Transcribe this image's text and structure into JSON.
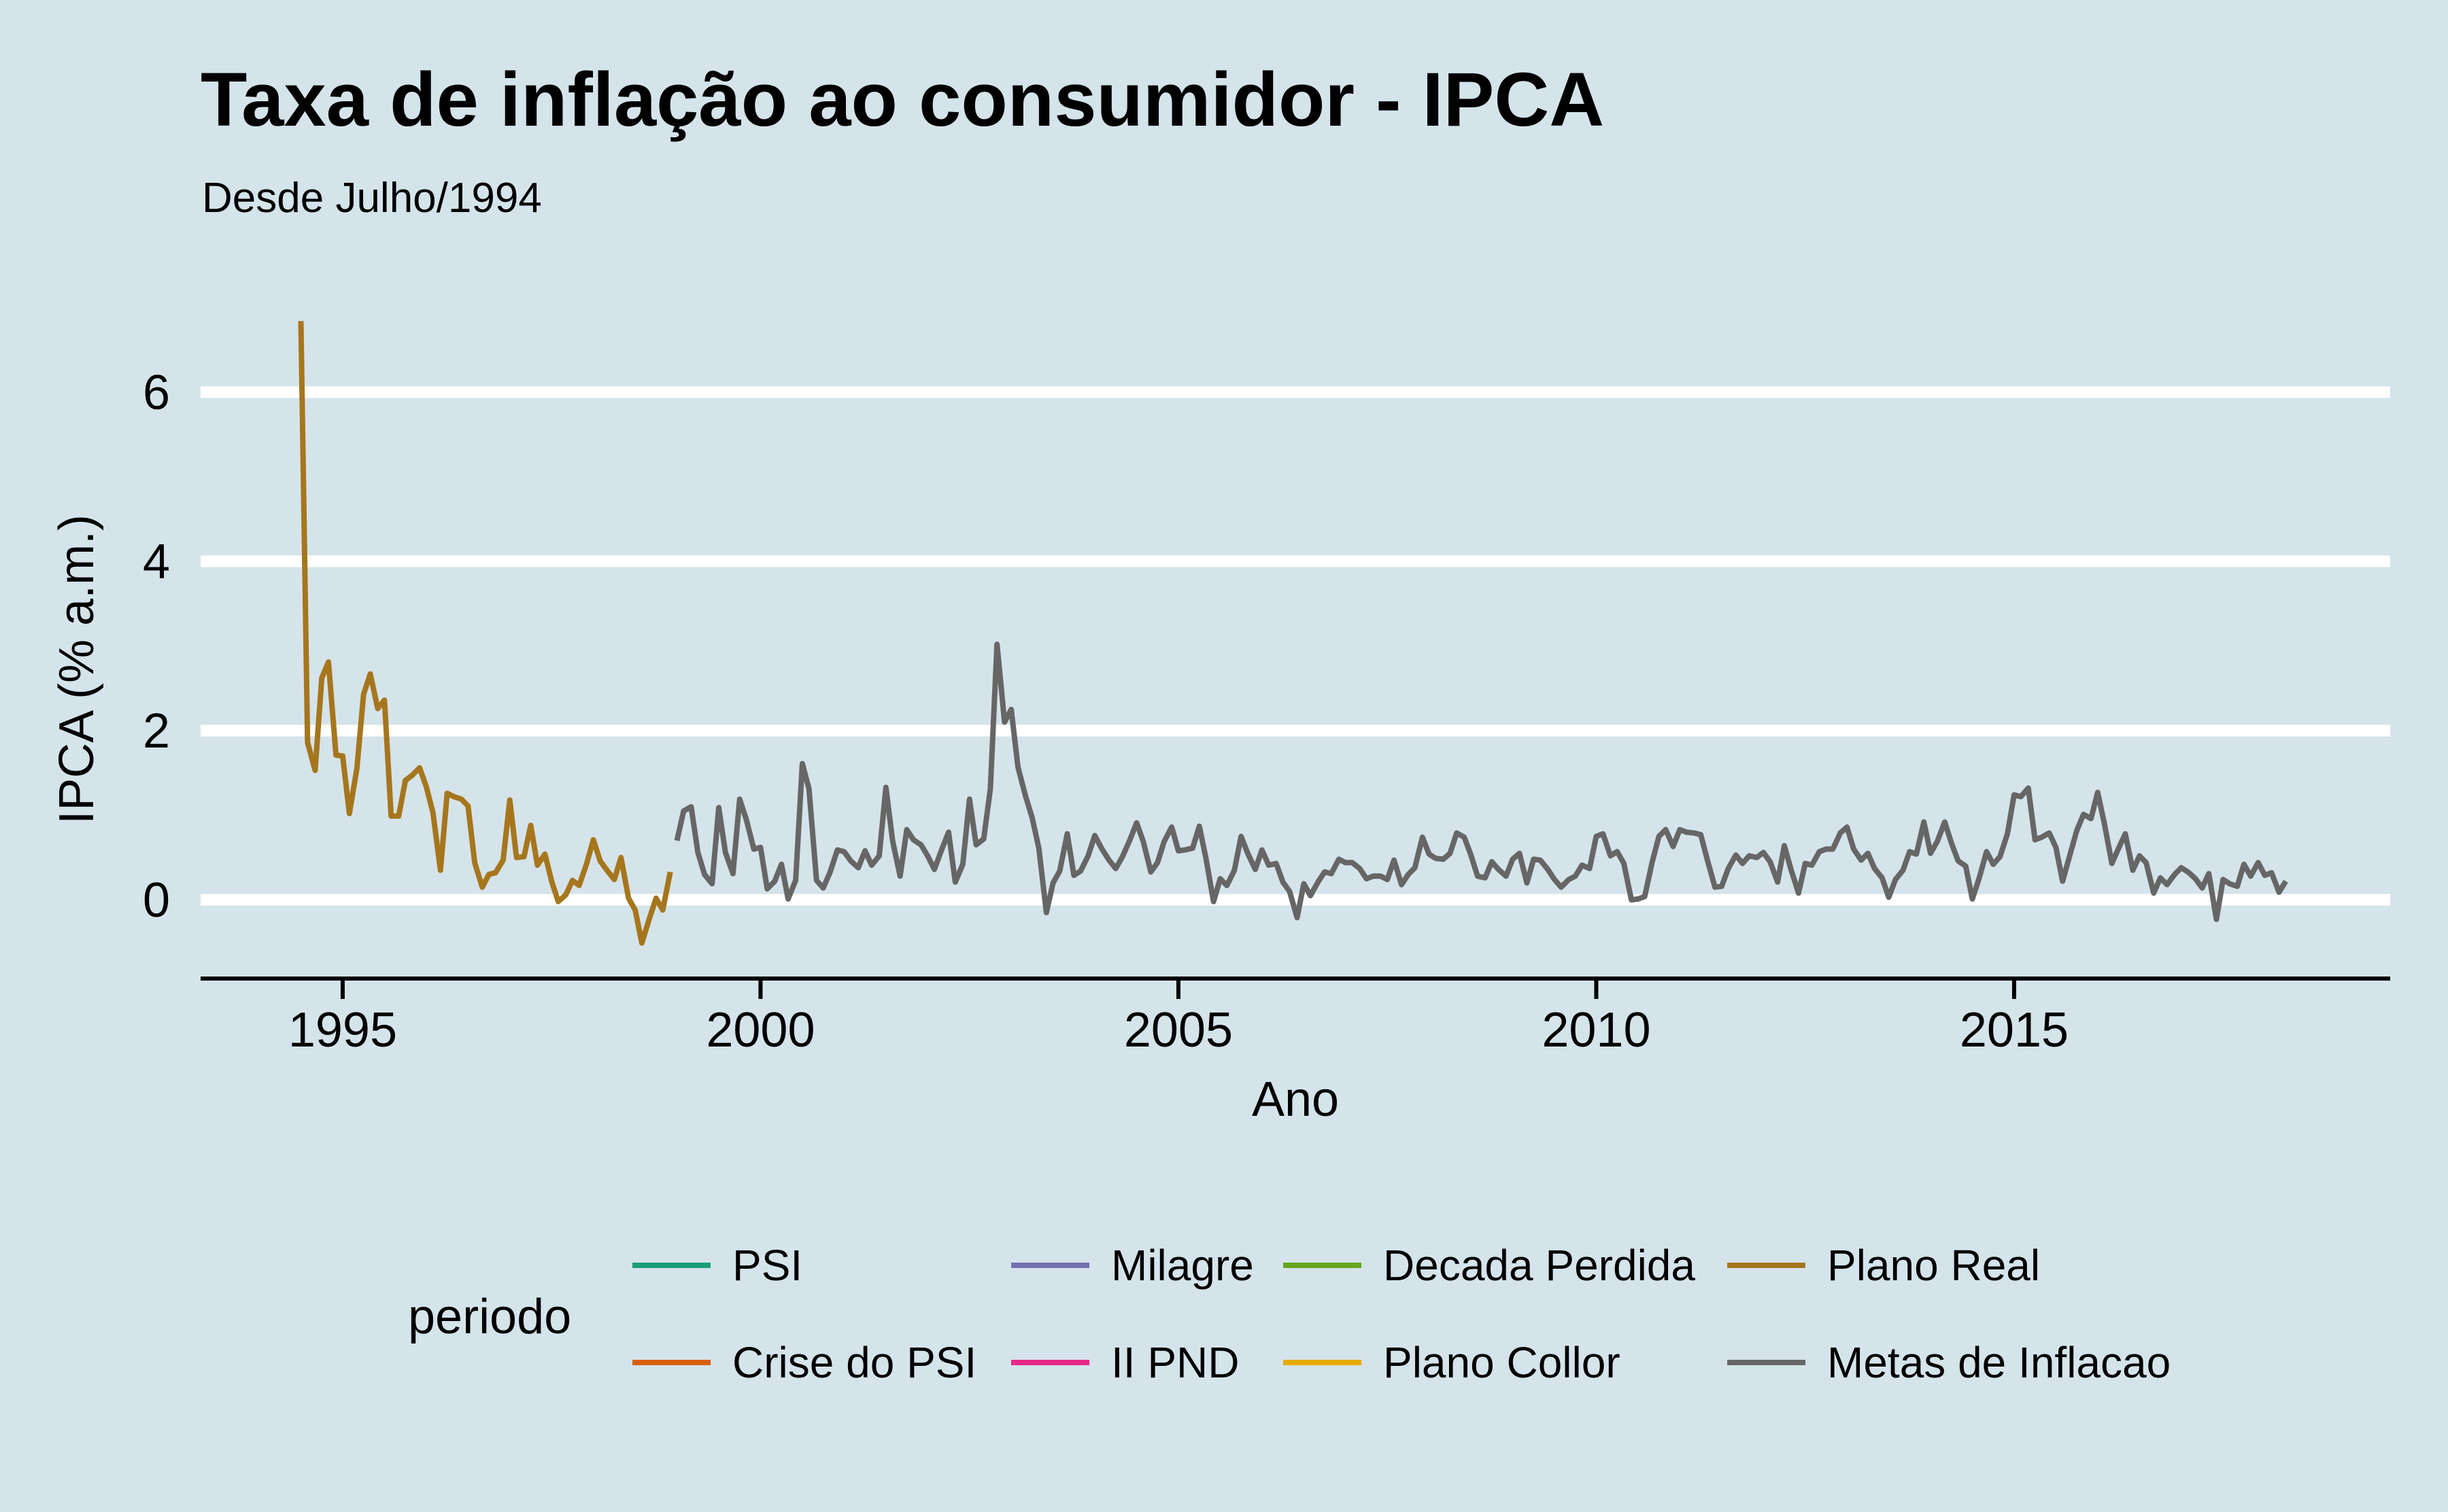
{
  "chart_data": {
    "type": "line",
    "title": "Taxa de inflação ao consumidor - IPCA",
    "subtitle": "Desde Julho/1994",
    "xlabel": "Ano",
    "ylabel": "IPCA (% a.m.)",
    "xlim": [
      1993.3,
      2019.5
    ],
    "ylim": [
      -0.93,
      7.1
    ],
    "x_ticks": [
      1995,
      2000,
      2005,
      2010,
      2015
    ],
    "x_tick_labels": [
      "1995",
      "2000",
      "2005",
      "2010",
      "2015"
    ],
    "y_ticks": [
      0,
      2,
      4,
      6
    ],
    "y_tick_labels": [
      "0",
      "2",
      "4",
      "6"
    ],
    "grid": "horizontal major lines only",
    "legend_title": "periodo",
    "legend_position": "bottom",
    "legend": [
      {
        "name": "PSI",
        "color": "#1b9e77"
      },
      {
        "name": "Milagre",
        "color": "#7570b3"
      },
      {
        "name": "Decada Perdida",
        "color": "#66a61e"
      },
      {
        "name": "Plano Real",
        "color": "#a6761d"
      },
      {
        "name": "Crise do PSI",
        "color": "#d95f02"
      },
      {
        "name": "II PND",
        "color": "#e7298a"
      },
      {
        "name": "Plano Collor",
        "color": "#e6ab02"
      },
      {
        "name": "Metas de Inflacao",
        "color": "#666666"
      }
    ],
    "series": [
      {
        "name": "Plano Real",
        "color": "#a6761d",
        "x": [
          1994.5,
          1994.58,
          1994.67,
          1994.75,
          1994.83,
          1994.92,
          1995.0,
          1995.08,
          1995.17,
          1995.25,
          1995.33,
          1995.42,
          1995.5,
          1995.58,
          1995.67,
          1995.75,
          1995.83,
          1995.92,
          1996.0,
          1996.08,
          1996.17,
          1996.25,
          1996.33,
          1996.42,
          1996.5,
          1996.58,
          1996.67,
          1996.75,
          1996.83,
          1996.92,
          1997.0,
          1997.08,
          1997.17,
          1997.25,
          1997.33,
          1997.42,
          1997.5,
          1997.58,
          1997.67,
          1997.75,
          1997.83,
          1997.92,
          1998.0,
          1998.08,
          1998.17,
          1998.25,
          1998.33,
          1998.42,
          1998.5,
          1998.58,
          1998.67,
          1998.75,
          1998.83,
          1998.92,
          1999.0
        ],
        "y": [
          6.84,
          1.86,
          1.53,
          2.62,
          2.81,
          1.71,
          1.7,
          1.02,
          1.55,
          2.43,
          2.67,
          2.26,
          2.36,
          0.99,
          0.99,
          1.41,
          1.47,
          1.56,
          1.34,
          1.03,
          0.35,
          1.26,
          1.22,
          1.19,
          1.11,
          0.44,
          0.15,
          0.3,
          0.32,
          0.47,
          1.18,
          0.5,
          0.51,
          0.88,
          0.41,
          0.54,
          0.22,
          -0.02,
          0.06,
          0.23,
          0.17,
          0.43,
          0.71,
          0.46,
          0.34,
          0.24,
          0.5,
          0.02,
          -0.12,
          -0.51,
          -0.22,
          0.02,
          -0.12,
          0.33,
          null
        ]
      },
      {
        "name": "Metas de Inflacao",
        "color": "#666666",
        "x": [
          1999.0,
          1999.08,
          1999.17,
          1999.25,
          1999.33,
          1999.42,
          1999.5,
          1999.58,
          1999.67,
          1999.75,
          1999.83,
          1999.92,
          2000.0,
          2000.08,
          2000.17,
          2000.25,
          2000.33,
          2000.42,
          2000.5,
          2000.58,
          2000.67,
          2000.75,
          2000.83,
          2000.92,
          2001.0,
          2001.08,
          2001.17,
          2001.25,
          2001.33,
          2001.42,
          2001.5,
          2001.58,
          2001.67,
          2001.75,
          2001.83,
          2001.92,
          2002.0,
          2002.08,
          2002.17,
          2002.25,
          2002.33,
          2002.42,
          2002.5,
          2002.58,
          2002.67,
          2002.75,
          2002.83,
          2002.92,
          2003.0,
          2003.08,
          2003.17,
          2003.25,
          2003.33,
          2003.42,
          2003.5,
          2003.58,
          2003.67,
          2003.75,
          2003.83,
          2003.92,
          2004.0,
          2004.08,
          2004.17,
          2004.25,
          2004.33,
          2004.42,
          2004.5,
          2004.58,
          2004.67,
          2004.75,
          2004.83,
          2004.92,
          2005.0,
          2005.08,
          2005.17,
          2005.25,
          2005.33,
          2005.42,
          2005.5,
          2005.58,
          2005.67,
          2005.75,
          2005.83,
          2005.92,
          2006.0,
          2006.08,
          2006.17,
          2006.25,
          2006.33,
          2006.42,
          2006.5,
          2006.58,
          2006.67,
          2006.75,
          2006.83,
          2006.92,
          2007.0,
          2007.08,
          2007.17,
          2007.25,
          2007.33,
          2007.42,
          2007.5,
          2007.58,
          2007.67,
          2007.75,
          2007.83,
          2007.92,
          2008.0,
          2008.08,
          2008.17,
          2008.25,
          2008.33,
          2008.42,
          2008.5,
          2008.58,
          2008.67,
          2008.75,
          2008.83,
          2008.92,
          2009.0,
          2009.08,
          2009.17,
          2009.25,
          2009.33,
          2009.42,
          2009.5,
          2009.58,
          2009.67,
          2009.75,
          2009.83,
          2009.92,
          2010.0,
          2010.08,
          2010.17,
          2010.25,
          2010.33,
          2010.42,
          2010.5,
          2010.58,
          2010.67,
          2010.75,
          2010.83,
          2010.92,
          2011.0,
          2011.08,
          2011.17,
          2011.25,
          2011.33,
          2011.42,
          2011.5,
          2011.58,
          2011.67,
          2011.75,
          2011.83,
          2011.92,
          2012.0,
          2012.08,
          2012.17,
          2012.25,
          2012.33,
          2012.42,
          2012.5,
          2012.58,
          2012.67,
          2012.75,
          2012.83,
          2012.92,
          2013.0,
          2013.08,
          2013.17,
          2013.25,
          2013.33,
          2013.42,
          2013.5,
          2013.58,
          2013.67,
          2013.75,
          2013.83,
          2013.92,
          2014.0,
          2014.08,
          2014.17,
          2014.25,
          2014.33,
          2014.42,
          2014.5,
          2014.58,
          2014.67,
          2014.75,
          2014.83,
          2014.92,
          2015.0,
          2015.08,
          2015.17,
          2015.25,
          2015.33,
          2015.42,
          2015.5,
          2015.58,
          2015.67,
          2015.75,
          2015.83,
          2015.92,
          2016.0,
          2016.08,
          2016.17,
          2016.25,
          2016.33,
          2016.42,
          2016.5,
          2016.58,
          2016.67,
          2016.75,
          2016.83,
          2016.92,
          2017.0,
          2017.08,
          2017.17,
          2017.25,
          2017.33,
          2017.42,
          2017.5,
          2017.58,
          2017.67,
          2017.75,
          2017.83,
          2017.92,
          2018.0,
          2018.08,
          2018.17,
          2018.25
        ],
        "y": [
          0.7,
          1.05,
          1.1,
          0.56,
          0.3,
          0.19,
          1.09,
          0.56,
          0.31,
          1.19,
          0.95,
          0.6,
          0.62,
          0.13,
          0.22,
          0.42,
          0.01,
          0.23,
          1.61,
          1.31,
          0.23,
          0.14,
          0.32,
          0.59,
          0.57,
          0.46,
          0.38,
          0.58,
          0.41,
          0.52,
          1.33,
          0.7,
          0.28,
          0.83,
          0.71,
          0.65,
          0.52,
          0.36,
          0.6,
          0.8,
          0.21,
          0.42,
          1.19,
          0.65,
          0.72,
          1.31,
          3.02,
          2.1,
          2.25,
          1.57,
          1.23,
          0.97,
          0.61,
          -0.15,
          0.2,
          0.34,
          0.78,
          0.29,
          0.34,
          0.52,
          0.76,
          0.61,
          0.47,
          0.37,
          0.51,
          0.71,
          0.91,
          0.69,
          0.33,
          0.44,
          0.69,
          0.86,
          0.58,
          0.59,
          0.61,
          0.87,
          0.49,
          -0.02,
          0.25,
          0.17,
          0.35,
          0.75,
          0.55,
          0.36,
          0.59,
          0.41,
          0.43,
          0.21,
          0.1,
          -0.21,
          0.19,
          0.05,
          0.21,
          0.33,
          0.31,
          0.48,
          0.44,
          0.44,
          0.37,
          0.25,
          0.28,
          0.28,
          0.24,
          0.47,
          0.18,
          0.3,
          0.38,
          0.74,
          0.54,
          0.49,
          0.48,
          0.55,
          0.79,
          0.74,
          0.53,
          0.28,
          0.26,
          0.45,
          0.36,
          0.28,
          0.48,
          0.55,
          0.2,
          0.48,
          0.47,
          0.36,
          0.24,
          0.15,
          0.24,
          0.28,
          0.41,
          0.37,
          0.75,
          0.78,
          0.52,
          0.57,
          0.43,
          0.0,
          0.01,
          0.04,
          0.45,
          0.75,
          0.83,
          0.63,
          0.83,
          0.8,
          0.79,
          0.77,
          0.47,
          0.15,
          0.16,
          0.37,
          0.53,
          0.43,
          0.52,
          0.5,
          0.56,
          0.45,
          0.21,
          0.64,
          0.36,
          0.08,
          0.43,
          0.41,
          0.57,
          0.6,
          0.6,
          0.79,
          0.86,
          0.6,
          0.47,
          0.55,
          0.37,
          0.26,
          0.03,
          0.24,
          0.35,
          0.57,
          0.54,
          0.92,
          0.55,
          0.69,
          0.92,
          0.67,
          0.46,
          0.4,
          0.01,
          0.25,
          0.57,
          0.42,
          0.51,
          0.78,
          1.24,
          1.22,
          1.32,
          0.71,
          0.74,
          0.79,
          0.62,
          0.22,
          0.54,
          0.82,
          1.01,
          0.96,
          1.27,
          0.9,
          0.43,
          0.61,
          0.78,
          0.35,
          0.52,
          0.44,
          0.08,
          0.26,
          0.18,
          0.3,
          0.38,
          0.33,
          0.25,
          0.14,
          0.31,
          -0.23,
          0.24,
          0.19,
          0.16,
          0.42,
          0.28,
          0.44,
          0.29,
          0.32,
          0.09,
          0.22
        ]
      }
    ]
  }
}
